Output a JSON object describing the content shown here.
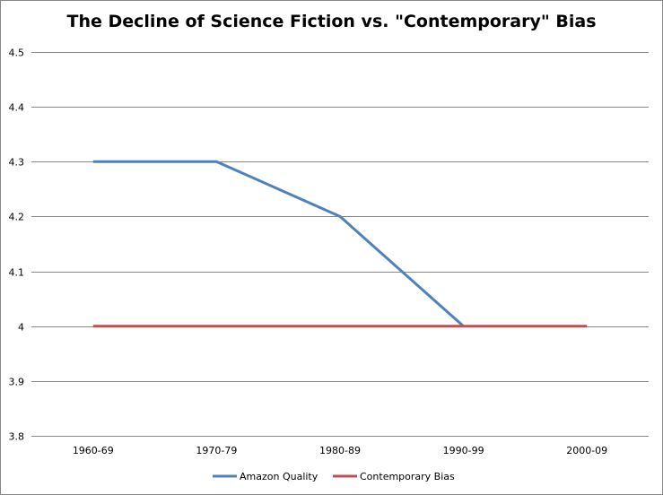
{
  "chart_data": {
    "type": "line",
    "title": "The Decline of Science Fiction vs. \"Contemporary\" Bias",
    "xlabel": "",
    "ylabel": "",
    "categories": [
      "1960-69",
      "1970-79",
      "1980-89",
      "1990-99",
      "2000-09"
    ],
    "ylim": [
      3.8,
      4.5
    ],
    "yticks": [
      3.8,
      3.9,
      4,
      4.1,
      4.2,
      4.3,
      4.4,
      4.5
    ],
    "grid": true,
    "legend_position": "bottom",
    "series": [
      {
        "name": "Amazon Quality",
        "color": "#4F81BD",
        "values": [
          4.3,
          4.3,
          4.2,
          4.0,
          null
        ]
      },
      {
        "name": "Contemporary Bias",
        "color": "#C0504D",
        "values": [
          4.0,
          4.0,
          4.0,
          4.0,
          4.0
        ]
      }
    ]
  }
}
